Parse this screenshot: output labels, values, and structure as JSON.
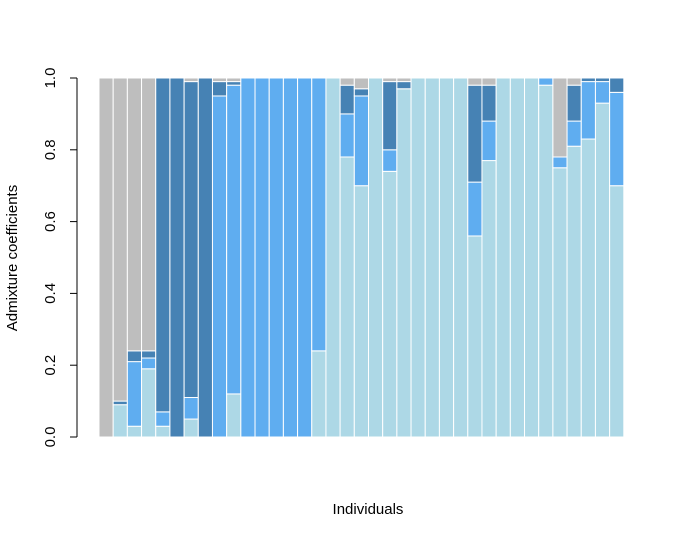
{
  "chart_data": {
    "type": "bar",
    "stacked": true,
    "xlabel": "Individuals",
    "ylabel": "Admixture coefficients",
    "ylim": [
      0,
      1
    ],
    "yticks": [
      "0.0",
      "0.2",
      "0.4",
      "0.6",
      "0.8",
      "1.0"
    ],
    "n_individuals": 38,
    "colors": {
      "light_blue": "#add8e6",
      "sky_blue": "#5fadf0",
      "steel_blue": "#4682b4",
      "gray": "#bebebe"
    },
    "series": [
      {
        "color_key": "light_blue",
        "values": [
          0,
          0.09,
          0.03,
          0.19,
          0.03,
          0,
          0.05,
          0,
          0,
          0.12,
          0,
          0,
          0,
          0,
          0,
          0.24,
          1,
          0.78,
          0.7,
          1,
          0.74,
          0.97,
          1,
          1,
          1,
          1,
          0.56,
          0.77,
          1,
          1,
          1,
          0.98,
          0.75,
          0.81,
          0.83,
          0.93,
          0.7,
          0
        ]
      },
      {
        "color_key": "sky_blue",
        "values": [
          0,
          0,
          0.18,
          0.03,
          0.04,
          0,
          0.06,
          0,
          0.95,
          0.86,
          1,
          1,
          1,
          1,
          1,
          0.76,
          0,
          0.12,
          0.25,
          0,
          0.06,
          0,
          0,
          0,
          0,
          0,
          0.15,
          0.11,
          0,
          0,
          0,
          0.02,
          0.03,
          0.07,
          0.16,
          0.06,
          0.26,
          0
        ]
      },
      {
        "color_key": "steel_blue",
        "values": [
          0,
          0.01,
          0.03,
          0.02,
          0.93,
          1,
          0.88,
          1,
          0.04,
          0.01,
          0,
          0,
          0,
          0,
          0,
          0,
          0,
          0.08,
          0.02,
          0,
          0.19,
          0.02,
          0,
          0,
          0,
          0,
          0.27,
          0.1,
          0,
          0,
          0,
          0,
          0,
          0.1,
          0.01,
          0.01,
          0.04,
          0
        ]
      },
      {
        "color_key": "gray",
        "values": [
          1,
          0.9,
          0.76,
          0.76,
          0,
          0,
          0.01,
          0,
          0.01,
          0.01,
          0,
          0,
          0,
          0,
          0,
          0,
          0,
          0.02,
          0.03,
          0,
          0.01,
          0.01,
          0,
          0,
          0,
          0,
          0.02,
          0.02,
          0,
          0,
          0,
          0,
          0.22,
          0.02,
          0,
          0,
          0,
          0
        ]
      }
    ]
  }
}
